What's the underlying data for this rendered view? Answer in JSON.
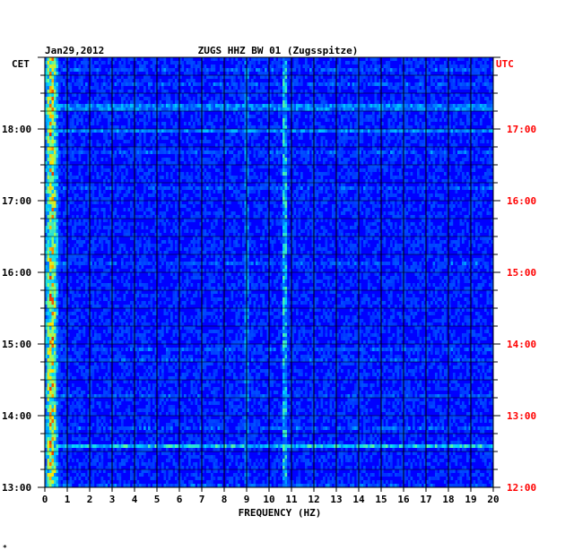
{
  "chart_data": {
    "type": "heatmap",
    "date": "Jan29,2012",
    "title": "ZUGS HHZ BW 01 (Zugsspitze)",
    "left_timezone": "CET",
    "right_timezone": "UTC",
    "xlabel": "FREQUENCY (HZ)",
    "x_ticks": [
      "0",
      "1",
      "2",
      "3",
      "4",
      "5",
      "6",
      "7",
      "8",
      "9",
      "10",
      "11",
      "12",
      "13",
      "14",
      "15",
      "16",
      "17",
      "18",
      "19",
      "20"
    ],
    "xlim": [
      0,
      20
    ],
    "left_time_ticks": [
      "18:00",
      "17:00",
      "16:00",
      "15:00",
      "14:00",
      "13:00"
    ],
    "right_time_ticks": [
      "17:00",
      "16:00",
      "15:00",
      "14:00",
      "13:00",
      "12:00"
    ],
    "time_range_cet": [
      "13:00",
      "19:00"
    ],
    "colors": {
      "background": "#0000ff",
      "left_labels": "#000000",
      "right_labels": "#ff0000"
    },
    "spectral_features": [
      {
        "frequency_hz": 0.3,
        "strength": "very high"
      },
      {
        "frequency_hz": 9.0,
        "strength": "moderate"
      },
      {
        "frequency_hz": 10.7,
        "strength": "high"
      },
      {
        "frequency_hz": 12.0,
        "strength": "low"
      },
      {
        "frequency_hz": 14.0,
        "strength": "low"
      },
      {
        "frequency_hz": 16.0,
        "strength": "low"
      }
    ],
    "broadband_events": [
      {
        "time_cet": "13:35",
        "strength": "high"
      },
      {
        "time_cet": "18:18",
        "strength": "moderate"
      },
      {
        "time_cet": "17:58",
        "strength": "moderate"
      }
    ]
  },
  "footnote": "*"
}
